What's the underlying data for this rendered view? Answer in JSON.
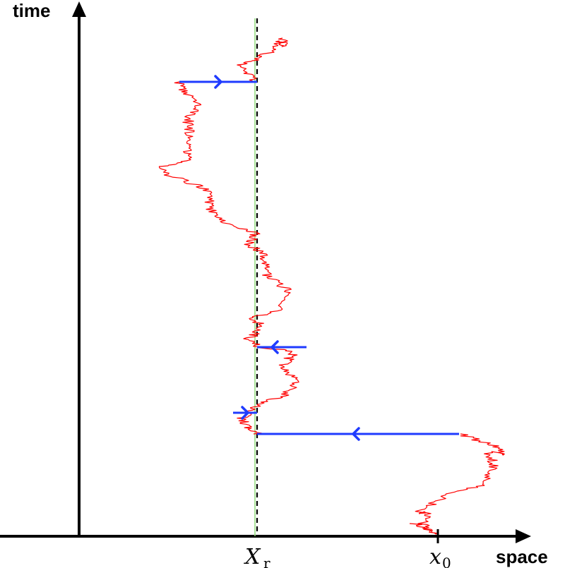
{
  "axes": {
    "y_label": "time",
    "x_label": "space"
  },
  "markers": {
    "reset_point": {
      "base": "X",
      "sub": "r"
    },
    "start_point": {
      "base": "x",
      "sub": "0"
    }
  },
  "colors": {
    "path": "#ff0000",
    "reset_jump": "#1f3bff",
    "reset_line": "#000000",
    "guide_line": "#8fdc7a",
    "axis": "#000000"
  }
}
